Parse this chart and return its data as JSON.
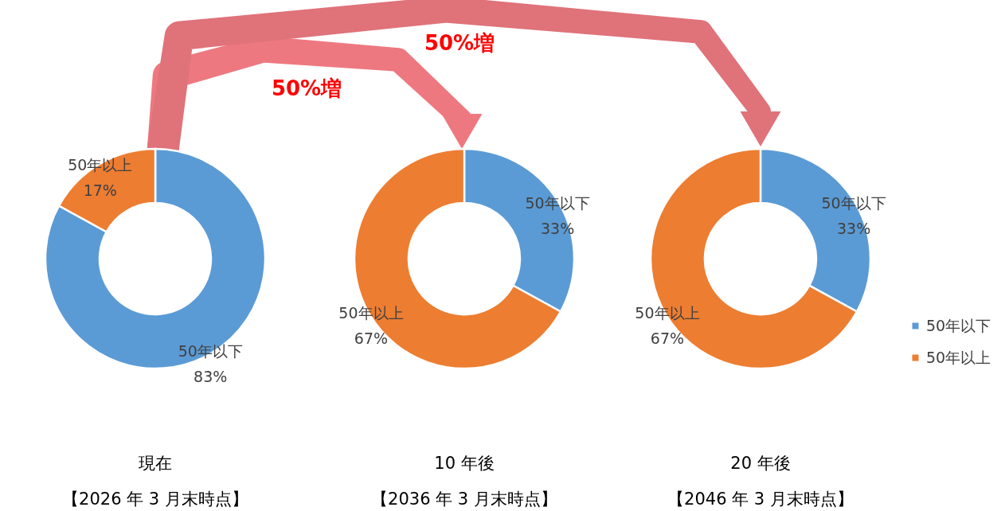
{
  "chart_data": [
    {
      "type": "donut",
      "title": "現在",
      "subtitle": "【2026 年 3 月末時点】",
      "categories": [
        "50年以下",
        "50年以上"
      ],
      "values": [
        83,
        17
      ],
      "colors": [
        "#5b9bd5",
        "#ed7d31"
      ],
      "value_labels": [
        "83%",
        "17%"
      ],
      "legend": false
    },
    {
      "type": "donut",
      "title": "10 年後",
      "subtitle": "【2036 年 3 月末時点】",
      "categories": [
        "50年以下",
        "50年以上"
      ],
      "values": [
        33,
        67
      ],
      "colors": [
        "#5b9bd5",
        "#ed7d31"
      ],
      "value_labels": [
        "33%",
        "67%"
      ],
      "legend": false,
      "annotations": [
        "50%増"
      ]
    },
    {
      "type": "donut",
      "title": "20 年後",
      "subtitle": "【2046 年 3 月末時点】",
      "categories": [
        "50年以下",
        "50年以上"
      ],
      "values": [
        33,
        67
      ],
      "colors": [
        "#5b9bd5",
        "#ed7d31"
      ],
      "value_labels": [
        "33%",
        "67%"
      ],
      "legend": "right",
      "annotations": [
        "50%増"
      ]
    }
  ]
}
